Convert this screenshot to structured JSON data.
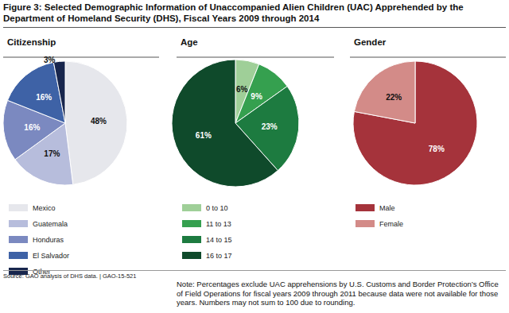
{
  "title": "Figure 3: Selected Demographic Information of Unaccompanied Alien Children (UAC) Apprehended by the Department of Homeland Security (DHS), Fiscal Years 2009 through 2014",
  "source": "Source: GAO analysis of DHS data. | GAO-15-521",
  "note": "Note: Percentages exclude UAC apprehensions by U.S. Customs and Border Protection’s Office of Field Operations for fiscal years 2009 through 2011 because data were not available for those years. Numbers may not sum to 100 due to rounding.",
  "chart_data": [
    {
      "type": "pie",
      "title": "Citizenship",
      "categories": [
        "Mexico",
        "Guatemala",
        "Honduras",
        "El Salvador",
        "Other"
      ],
      "values": [
        48,
        17,
        16,
        16,
        3
      ],
      "value_labels": [
        "48%",
        "17%",
        "16%",
        "16%",
        "3%"
      ],
      "colors": [
        "#e6e7ec",
        "#b7bddc",
        "#7b89c0",
        "#3e62a6",
        "#18264d"
      ],
      "data_labels": true,
      "legend": "bottom-left"
    },
    {
      "type": "pie",
      "title": "Age",
      "categories": [
        "0 to 10",
        "11 to 13",
        "14 to 15",
        "16 to 17"
      ],
      "values": [
        6,
        9,
        23,
        61
      ],
      "value_labels": [
        "6%",
        "9%",
        "23%",
        "61%"
      ],
      "colors": [
        "#9fcf98",
        "#35a04f",
        "#1d7b40",
        "#0f4a2b"
      ],
      "data_labels": true,
      "legend": "bottom-left"
    },
    {
      "type": "pie",
      "title": "Gender",
      "categories": [
        "Male",
        "Female"
      ],
      "values": [
        78,
        22
      ],
      "value_labels": [
        "78%",
        "22%"
      ],
      "colors": [
        "#a5333b",
        "#d38b88"
      ],
      "data_labels": true,
      "legend": "bottom-left"
    }
  ]
}
